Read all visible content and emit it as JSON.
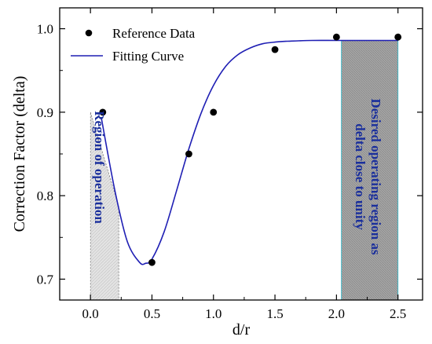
{
  "chart_data": {
    "type": "scatter",
    "xlabel": "d/r",
    "ylabel": "Correction Factor (delta)",
    "xlim": [
      -0.25,
      2.7
    ],
    "ylim": [
      0.675,
      1.025
    ],
    "x_ticks": [
      0.0,
      0.5,
      1.0,
      1.5,
      2.0,
      2.5
    ],
    "x_tick_labels": [
      "0.0",
      "0.5",
      "1.0",
      "1.5",
      "2.0",
      "2.5"
    ],
    "y_ticks": [
      0.7,
      0.8,
      0.9,
      1.0
    ],
    "y_tick_labels": [
      "0.7",
      "0.8",
      "0.9",
      "1.0"
    ],
    "grid": false,
    "legend_position": "top-left",
    "series": [
      {
        "name": "Reference Data",
        "kind": "scatter",
        "color": "#000000",
        "x": [
          0.1,
          0.5,
          0.8,
          1.0,
          1.5,
          2.0,
          2.5
        ],
        "y": [
          0.9,
          0.72,
          0.85,
          0.9,
          0.975,
          0.99,
          0.99
        ]
      },
      {
        "name": "Fitting Curve",
        "kind": "line",
        "color": "#1f1fb4",
        "x": [
          0.09,
          0.2,
          0.3,
          0.4,
          0.45,
          0.5,
          0.6,
          0.7,
          0.8,
          0.9,
          1.0,
          1.1,
          1.2,
          1.3,
          1.4,
          1.5,
          1.6,
          1.8,
          2.0,
          2.2,
          2.5
        ],
        "y": [
          0.892,
          0.805,
          0.745,
          0.72,
          0.719,
          0.724,
          0.757,
          0.806,
          0.856,
          0.899,
          0.932,
          0.955,
          0.969,
          0.977,
          0.982,
          0.984,
          0.985,
          0.986,
          0.986,
          0.986,
          0.986
        ]
      }
    ],
    "regions": [
      {
        "name": "region-of-operation",
        "label": "Region of operation",
        "fill": "#d9d9d9",
        "polygon": [
          [
            0.0,
            0.9
          ],
          [
            0.23,
            0.787
          ],
          [
            0.23,
            0.675
          ],
          [
            0.0,
            0.675
          ]
        ]
      },
      {
        "name": "desired-operating-region",
        "label": "Desired operating region as delta close to unity",
        "fill": "#a9a9a9",
        "x_range": [
          2.04,
          2.5
        ],
        "y_range": [
          0.675,
          0.986
        ]
      }
    ],
    "annotations": {
      "region_label": "Region of operation",
      "desired_line1": "Desired operating region as",
      "desired_line2": "delta close to unity"
    }
  }
}
